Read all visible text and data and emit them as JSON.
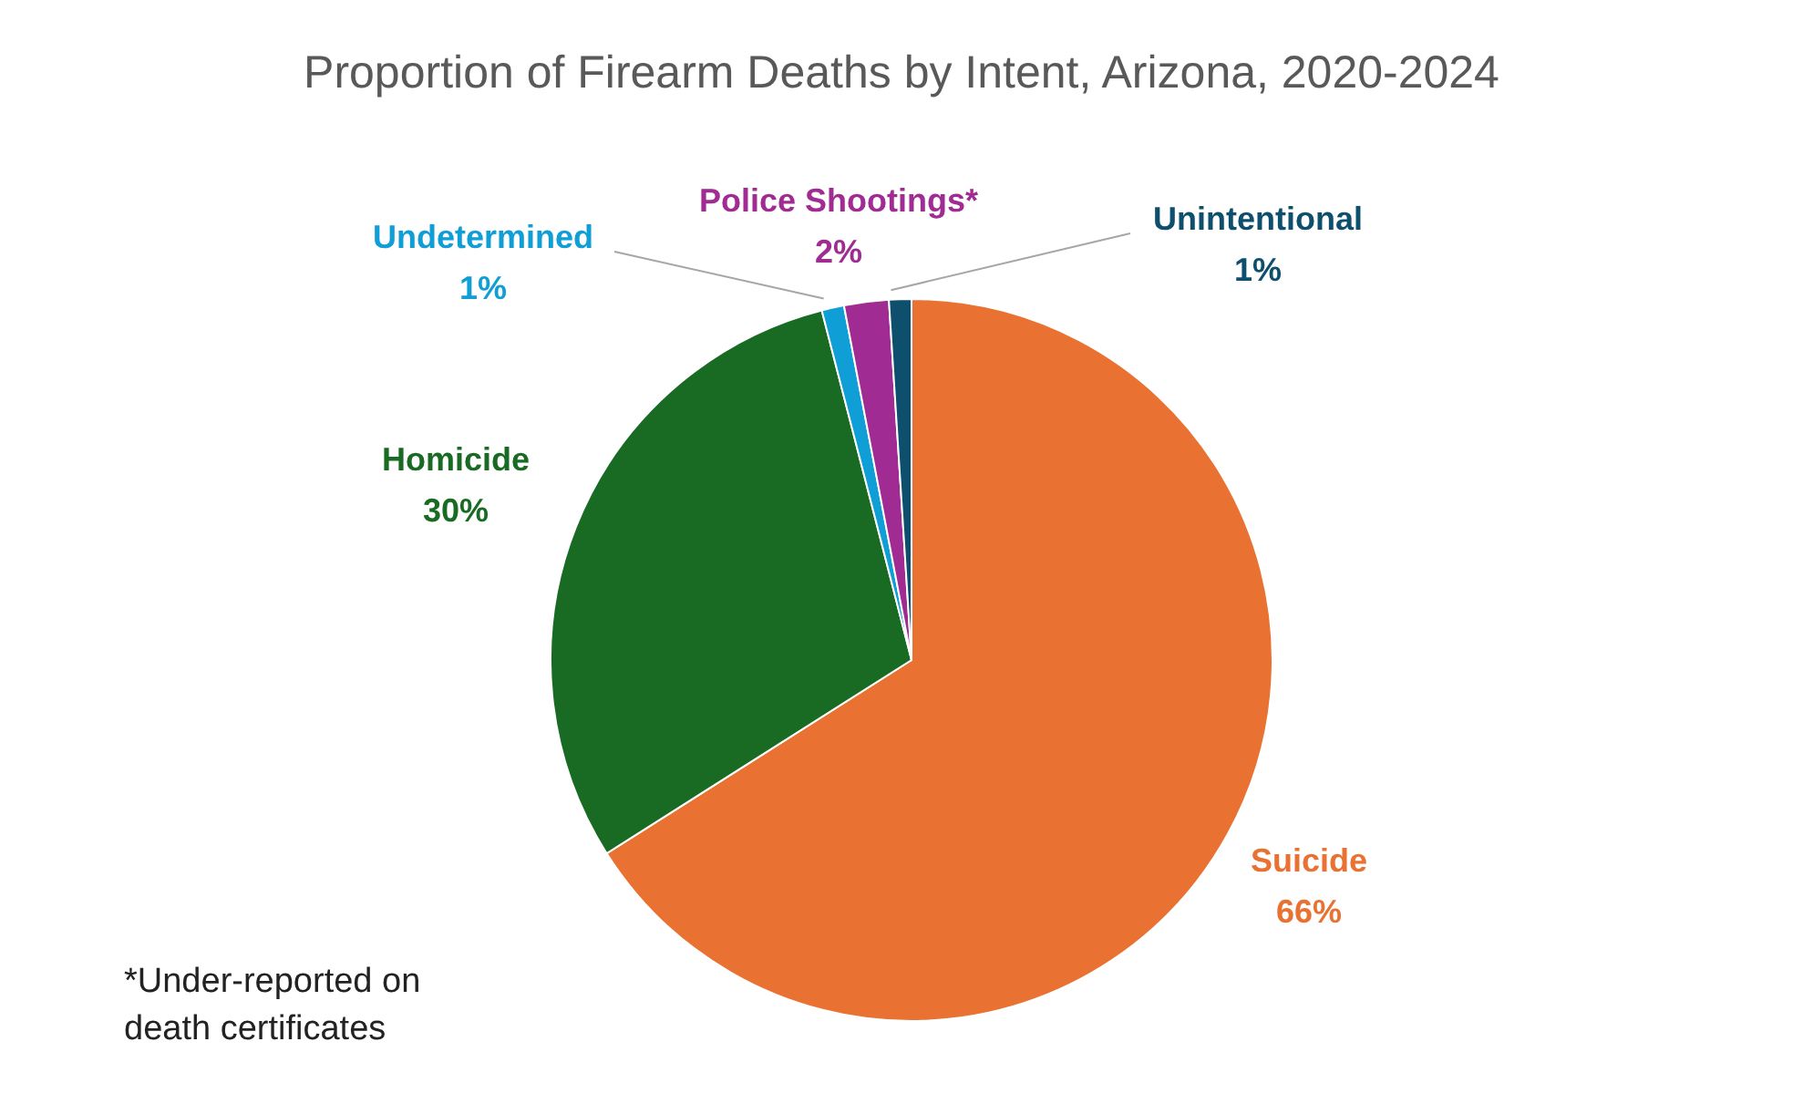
{
  "chart_data": {
    "type": "pie",
    "title": "Proportion of Firearm Deaths by Intent, Arizona, 2020-2024",
    "categories": [
      "Suicide",
      "Homicide",
      "Undetermined",
      "Police Shootings*",
      "Unintentional"
    ],
    "values": [
      66,
      30,
      1,
      2,
      1
    ],
    "colors": [
      "#e97132",
      "#196b24",
      "#0f9ed5",
      "#a02b93",
      "#0e4f6e"
    ],
    "value_labels": [
      "66%",
      "30%",
      "1%",
      "2%",
      "1%"
    ],
    "annotations": [
      "*Under-reported on death certificates"
    ]
  }
}
